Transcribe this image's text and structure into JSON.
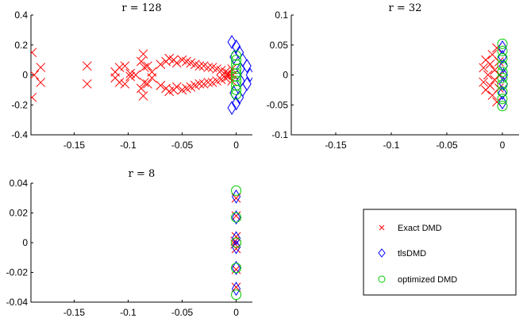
{
  "chart_data": [
    {
      "type": "scatter",
      "title": "r = 128",
      "xlim": [
        -0.19,
        0.015
      ],
      "ylim": [
        -0.4,
        0.4
      ],
      "xticks": [
        -0.15,
        -0.1,
        -0.05,
        0
      ],
      "xtick_labels": [
        "-0.15",
        "-0.1",
        "-0.05",
        "0"
      ],
      "yticks": [
        -0.4,
        -0.2,
        0,
        0.2,
        0.4
      ],
      "ytick_labels": [
        "-0.4",
        "-0.2",
        "0",
        "0.2",
        "0.4"
      ],
      "series": [
        {
          "name": "Exact DMD",
          "marker": "x",
          "color": "#ff0000",
          "points": [
            [
              -0.189,
              0.15
            ],
            [
              -0.189,
              -0.15
            ],
            [
              -0.187,
              0.0
            ],
            [
              -0.181,
              0.05
            ],
            [
              -0.181,
              -0.05
            ],
            [
              -0.138,
              0.06
            ],
            [
              -0.138,
              -0.06
            ],
            [
              -0.112,
              0.02
            ],
            [
              -0.112,
              -0.02
            ],
            [
              -0.108,
              0.05
            ],
            [
              -0.108,
              -0.05
            ],
            [
              -0.103,
              0.06
            ],
            [
              -0.103,
              -0.06
            ],
            [
              -0.098,
              0.01
            ],
            [
              -0.098,
              -0.01
            ],
            [
              -0.093,
              0.0
            ],
            [
              -0.088,
              0.09
            ],
            [
              -0.088,
              -0.09
            ],
            [
              -0.086,
              0.14
            ],
            [
              -0.086,
              -0.14
            ],
            [
              -0.085,
              0.05
            ],
            [
              -0.085,
              -0.05
            ],
            [
              -0.082,
              0.06
            ],
            [
              -0.082,
              -0.06
            ],
            [
              -0.078,
              0.02
            ],
            [
              -0.078,
              -0.02
            ],
            [
              -0.07,
              0.07
            ],
            [
              -0.07,
              -0.07
            ],
            [
              -0.065,
              0.09
            ],
            [
              -0.065,
              -0.09
            ],
            [
              -0.062,
              0.11
            ],
            [
              -0.062,
              -0.11
            ],
            [
              -0.058,
              0.1
            ],
            [
              -0.058,
              -0.1
            ],
            [
              -0.055,
              0.08
            ],
            [
              -0.055,
              -0.08
            ],
            [
              -0.05,
              0.1
            ],
            [
              -0.05,
              -0.1
            ],
            [
              -0.046,
              0.09
            ],
            [
              -0.046,
              -0.09
            ],
            [
              -0.042,
              0.08
            ],
            [
              -0.042,
              -0.08
            ],
            [
              -0.038,
              0.07
            ],
            [
              -0.038,
              -0.07
            ],
            [
              -0.034,
              0.06
            ],
            [
              -0.034,
              -0.06
            ],
            [
              -0.03,
              0.06
            ],
            [
              -0.03,
              -0.06
            ],
            [
              -0.026,
              0.05
            ],
            [
              -0.026,
              -0.05
            ],
            [
              -0.022,
              0.05
            ],
            [
              -0.022,
              -0.05
            ],
            [
              -0.018,
              0.04
            ],
            [
              -0.018,
              -0.04
            ],
            [
              -0.014,
              0.03
            ],
            [
              -0.014,
              -0.03
            ],
            [
              -0.01,
              0.02
            ],
            [
              -0.01,
              -0.02
            ],
            [
              -0.007,
              0.01
            ],
            [
              -0.007,
              -0.01
            ],
            [
              -0.004,
              0.04
            ],
            [
              -0.004,
              -0.04
            ],
            [
              -0.003,
              0.0
            ]
          ]
        },
        {
          "name": "tlsDMD",
          "marker": "diamond",
          "color": "#0000ff",
          "points": [
            [
              -0.004,
              0.22
            ],
            [
              -0.004,
              -0.22
            ],
            [
              0.0,
              0.19
            ],
            [
              0.0,
              -0.19
            ],
            [
              0.003,
              0.15
            ],
            [
              0.003,
              -0.15
            ],
            [
              0.006,
              0.1
            ],
            [
              0.006,
              -0.1
            ],
            [
              0.01,
              0.06
            ],
            [
              0.01,
              -0.06
            ],
            [
              0.013,
              0.0
            ],
            [
              0.004,
              0.04
            ],
            [
              0.004,
              -0.04
            ],
            [
              -0.002,
              0.12
            ],
            [
              -0.002,
              -0.12
            ]
          ]
        },
        {
          "name": "optimized DMD",
          "marker": "circle",
          "color": "#00cc00",
          "points": [
            [
              0.0,
              0.13
            ],
            [
              0.0,
              -0.13
            ],
            [
              0.0,
              0.1
            ],
            [
              0.0,
              -0.1
            ],
            [
              0.0,
              0.07
            ],
            [
              0.0,
              -0.07
            ],
            [
              0.0,
              0.04
            ],
            [
              0.0,
              -0.04
            ],
            [
              0.0,
              0.01
            ],
            [
              0.0,
              -0.01
            ]
          ]
        }
      ]
    },
    {
      "type": "scatter",
      "title": "r = 32",
      "xlim": [
        -0.19,
        0.015
      ],
      "ylim": [
        -0.1,
        0.1
      ],
      "xticks": [
        -0.15,
        -0.1,
        -0.05,
        0
      ],
      "xtick_labels": [
        "-0.15",
        "-0.1",
        "-0.05",
        "0"
      ],
      "yticks": [
        -0.1,
        -0.05,
        0,
        0.05,
        0.1
      ],
      "ytick_labels": [
        "-0.1",
        "-0.05",
        "0",
        "0.05",
        "0.1"
      ],
      "series": [
        {
          "name": "Exact DMD",
          "marker": "x",
          "color": "#ff0000",
          "points": [
            [
              -0.017,
              0.012
            ],
            [
              -0.017,
              -0.012
            ],
            [
              -0.015,
              0.025
            ],
            [
              -0.015,
              -0.025
            ],
            [
              -0.013,
              0.0
            ],
            [
              -0.011,
              0.018
            ],
            [
              -0.011,
              -0.018
            ],
            [
              -0.009,
              0.034
            ],
            [
              -0.009,
              -0.034
            ],
            [
              -0.007,
              0.008
            ],
            [
              -0.007,
              -0.008
            ],
            [
              -0.005,
              0.045
            ],
            [
              -0.005,
              -0.045
            ],
            [
              -0.003,
              0.022
            ],
            [
              -0.003,
              -0.022
            ],
            [
              -0.002,
              0.0
            ]
          ]
        },
        {
          "name": "tlsDMD",
          "marker": "diamond",
          "color": "#0000ff",
          "points": [
            [
              0.0,
              0.046
            ],
            [
              0.0,
              -0.046
            ],
            [
              0.0,
              0.03
            ],
            [
              0.0,
              -0.03
            ],
            [
              0.001,
              0.015
            ],
            [
              0.001,
              -0.015
            ],
            [
              0.001,
              0.0
            ]
          ]
        },
        {
          "name": "optimized DMD",
          "marker": "circle",
          "color": "#00cc00",
          "points": [
            [
              0.0,
              0.052
            ],
            [
              0.0,
              -0.052
            ],
            [
              0.0,
              0.04
            ],
            [
              0.0,
              -0.04
            ],
            [
              0.0,
              0.028
            ],
            [
              0.0,
              -0.028
            ],
            [
              0.0,
              0.016
            ],
            [
              0.0,
              -0.016
            ],
            [
              0.0,
              0.005
            ],
            [
              0.0,
              -0.005
            ]
          ]
        }
      ]
    },
    {
      "type": "scatter",
      "title": "r = 8",
      "xlim": [
        -0.19,
        0.015
      ],
      "ylim": [
        -0.04,
        0.04
      ],
      "xticks": [
        -0.15,
        -0.1,
        -0.05,
        0
      ],
      "xtick_labels": [
        "-0.15",
        "-0.1",
        "-0.05",
        "0"
      ],
      "yticks": [
        -0.04,
        -0.02,
        0,
        0.02,
        0.04
      ],
      "ytick_labels": [
        "-0.04",
        "-0.02",
        "0",
        "0.02",
        "0.04"
      ],
      "series": [
        {
          "name": "Exact DMD",
          "marker": "x",
          "color": "#ff0000",
          "points": [
            [
              0.0,
              0.03
            ],
            [
              0.0,
              -0.03
            ],
            [
              0.0,
              0.018
            ],
            [
              0.0,
              -0.018
            ],
            [
              -0.001,
              0.001
            ],
            [
              -0.001,
              -0.001
            ],
            [
              0.0,
              0.004
            ],
            [
              0.0,
              -0.004
            ]
          ]
        },
        {
          "name": "tlsDMD",
          "marker": "diamond",
          "color": "#0000ff",
          "points": [
            [
              0.0,
              0.031
            ],
            [
              0.0,
              -0.031
            ],
            [
              0.0,
              0.017
            ],
            [
              0.0,
              -0.017
            ],
            [
              0.0,
              0.003
            ],
            [
              0.0,
              -0.003
            ]
          ]
        },
        {
          "name": "optimized DMD",
          "marker": "circle",
          "color": "#00cc00",
          "points": [
            [
              0.0,
              0.035
            ],
            [
              0.0,
              -0.035
            ],
            [
              0.0,
              0.017
            ],
            [
              0.0,
              -0.017
            ],
            [
              0.0,
              0.0
            ]
          ]
        }
      ]
    }
  ],
  "legend": {
    "entries": [
      {
        "label": "Exact DMD",
        "marker": "x",
        "color": "#ff0000"
      },
      {
        "label": "tlsDMD",
        "marker": "diamond",
        "color": "#0000ff"
      },
      {
        "label": "optimized DMD",
        "marker": "circle",
        "color": "#00cc00"
      }
    ]
  }
}
